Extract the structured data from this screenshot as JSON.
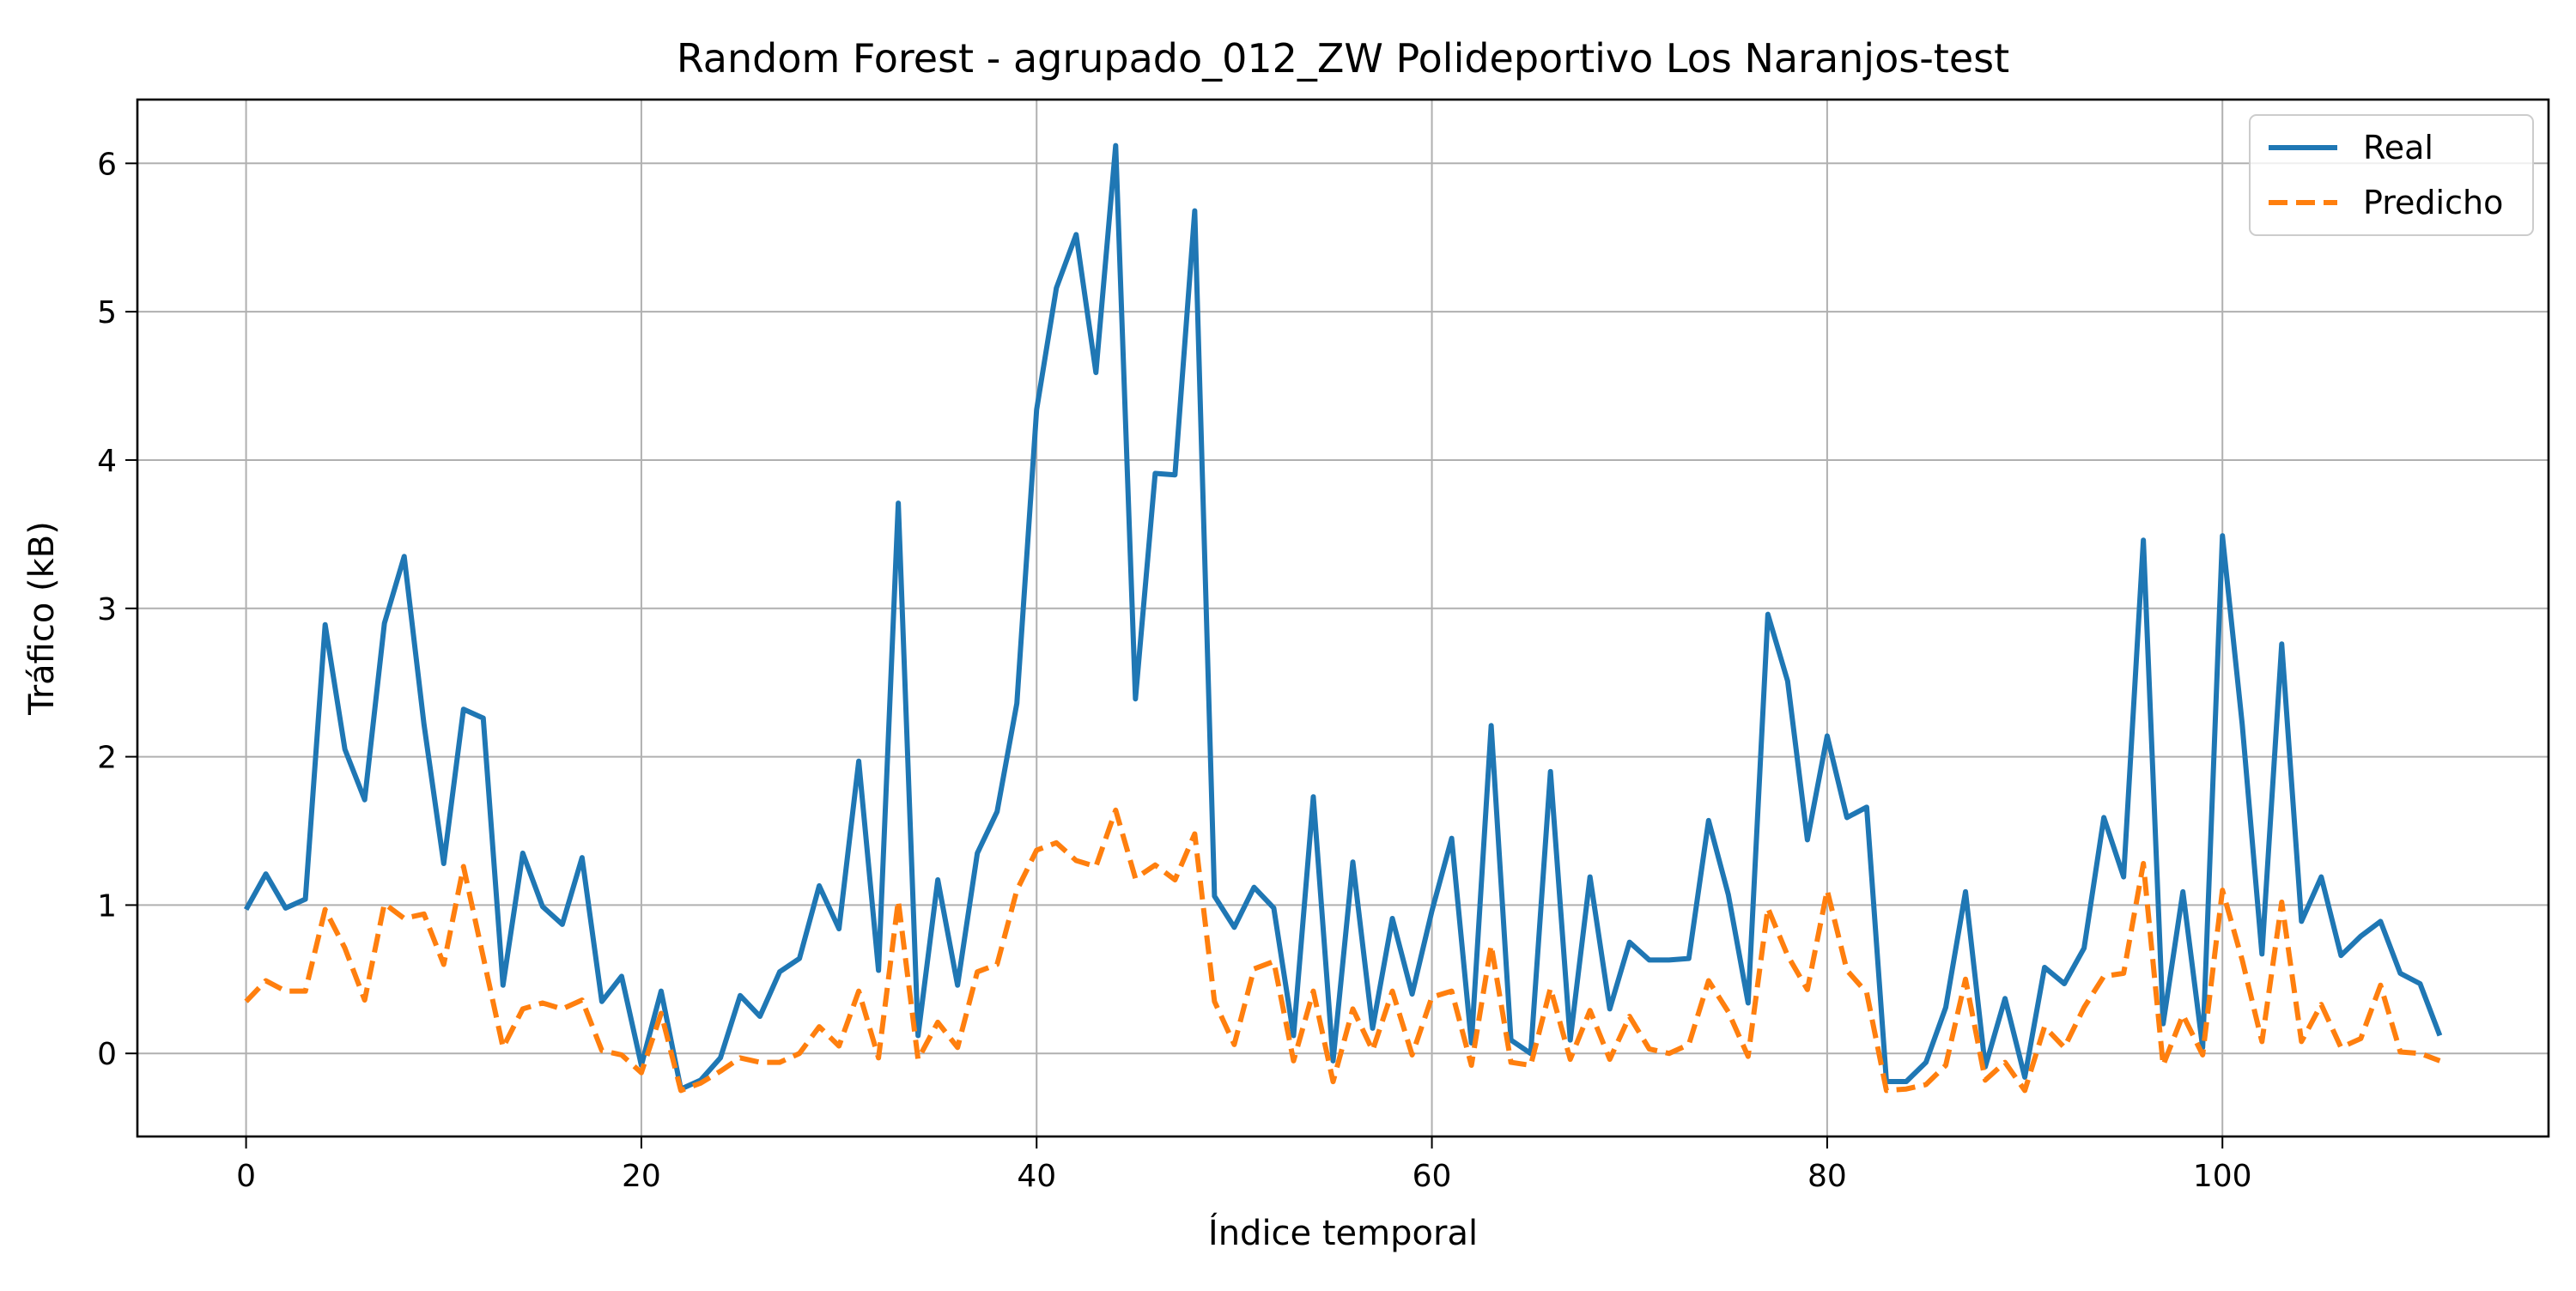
{
  "chart_data": {
    "type": "line",
    "title": "Random Forest - agrupado_012_ZW Polideportivo Los Naranjos-test",
    "xlabel": "Índice temporal",
    "ylabel": "Tráfico (kB)",
    "xlim": [
      -5.5,
      116.5
    ],
    "ylim": [
      -0.56,
      6.43
    ],
    "x_ticks": [
      0,
      20,
      40,
      60,
      80,
      100
    ],
    "y_ticks": [
      0,
      1,
      2,
      3,
      4,
      5,
      6
    ],
    "grid": true,
    "legend_position": "top-right",
    "series": [
      {
        "name": "Real",
        "color": "#1f77b4",
        "style": "solid",
        "values": [
          0.97,
          1.21,
          0.98,
          1.04,
          2.89,
          2.05,
          1.71,
          2.9,
          3.35,
          2.22,
          1.28,
          2.32,
          2.26,
          0.46,
          1.35,
          0.99,
          0.87,
          1.32,
          0.35,
          0.52,
          -0.08,
          0.42,
          -0.24,
          -0.18,
          -0.03,
          0.39,
          0.25,
          0.55,
          0.64,
          1.13,
          0.84,
          1.97,
          0.56,
          3.71,
          0.12,
          1.17,
          0.46,
          1.35,
          1.63,
          2.36,
          4.34,
          5.16,
          5.52,
          4.59,
          6.12,
          2.39,
          3.91,
          3.9,
          5.68,
          1.06,
          0.85,
          1.12,
          0.98,
          0.12,
          1.73,
          -0.05,
          1.29,
          0.17,
          0.91,
          0.4,
          0.96,
          1.45,
          0.07,
          2.21,
          0.09,
          0.0,
          1.9,
          0.09,
          1.19,
          0.3,
          0.75,
          0.63,
          0.63,
          0.64,
          1.57,
          1.07,
          0.34,
          2.96,
          2.51,
          1.44,
          2.14,
          1.59,
          1.66,
          -0.19,
          -0.19,
          -0.06,
          0.31,
          1.09,
          -0.09,
          0.37,
          -0.16,
          0.58,
          0.47,
          0.71,
          1.59,
          1.19,
          3.46,
          0.2,
          1.09,
          0.04,
          3.49,
          2.22,
          0.67,
          2.76,
          0.89,
          1.19,
          0.66,
          0.79,
          0.89,
          0.54,
          0.47,
          0.12
        ]
      },
      {
        "name": "Predicho",
        "color": "#ff7f0e",
        "style": "dashed",
        "values": [
          0.35,
          0.49,
          0.42,
          0.42,
          0.97,
          0.71,
          0.36,
          1.01,
          0.91,
          0.94,
          0.6,
          1.26,
          0.65,
          0.04,
          0.3,
          0.34,
          0.3,
          0.36,
          0.02,
          -0.01,
          -0.13,
          0.27,
          -0.25,
          -0.2,
          -0.12,
          -0.03,
          -0.06,
          -0.06,
          0.0,
          0.18,
          0.05,
          0.42,
          -0.03,
          1.03,
          -0.04,
          0.21,
          0.04,
          0.55,
          0.6,
          1.1,
          1.37,
          1.42,
          1.3,
          1.26,
          1.64,
          1.18,
          1.27,
          1.17,
          1.48,
          0.35,
          0.06,
          0.57,
          0.62,
          -0.05,
          0.42,
          -0.19,
          0.3,
          0.02,
          0.42,
          -0.01,
          0.38,
          0.42,
          -0.08,
          0.73,
          -0.06,
          -0.08,
          0.44,
          -0.04,
          0.29,
          -0.04,
          0.25,
          0.03,
          0.0,
          0.06,
          0.49,
          0.28,
          -0.02,
          0.98,
          0.66,
          0.43,
          1.1,
          0.56,
          0.41,
          -0.25,
          -0.24,
          -0.21,
          -0.08,
          0.5,
          -0.18,
          -0.06,
          -0.25,
          0.18,
          0.04,
          0.31,
          0.52,
          0.54,
          1.28,
          -0.08,
          0.26,
          -0.01,
          1.1,
          0.63,
          0.08,
          1.02,
          0.08,
          0.33,
          0.04,
          0.1,
          0.46,
          0.01,
          0.0,
          -0.05
        ]
      }
    ]
  }
}
